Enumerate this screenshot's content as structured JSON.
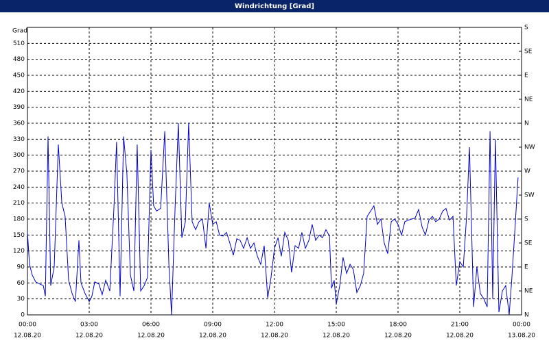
{
  "chart_data": {
    "type": "line",
    "title": "Windrichtung [Grad]",
    "y_label": "Grad",
    "x": [
      0,
      0.1,
      0.23,
      0.4,
      0.6,
      0.77,
      0.87,
      1,
      1.13,
      1.3,
      1.5,
      1.67,
      1.83,
      2,
      2.17,
      2.33,
      2.5,
      2.6,
      2.8,
      3,
      3.13,
      3.27,
      3.47,
      3.63,
      3.8,
      4,
      4.2,
      4.33,
      4.5,
      4.67,
      4.83,
      5,
      5.17,
      5.33,
      5.5,
      5.67,
      5.83,
      6,
      6.13,
      6.27,
      6.47,
      6.67,
      6.87,
      7,
      7.17,
      7.33,
      7.5,
      7.67,
      7.83,
      8,
      8.17,
      8.33,
      8.5,
      8.67,
      8.83,
      9,
      9.17,
      9.33,
      9.5,
      9.67,
      9.83,
      10,
      10.17,
      10.33,
      10.5,
      10.67,
      10.83,
      11,
      11.17,
      11.33,
      11.5,
      11.67,
      11.83,
      12,
      12.17,
      12.33,
      12.5,
      12.67,
      12.83,
      13,
      13.17,
      13.33,
      13.5,
      13.67,
      13.83,
      14,
      14.17,
      14.33,
      14.5,
      14.67,
      14.77,
      14.9,
      15,
      15.17,
      15.33,
      15.5,
      15.67,
      15.83,
      16,
      16.17,
      16.33,
      16.5,
      16.67,
      16.83,
      17,
      17.17,
      17.33,
      17.5,
      17.67,
      17.83,
      18,
      18.17,
      18.33,
      18.5,
      18.67,
      18.83,
      19,
      19.17,
      19.33,
      19.5,
      19.67,
      19.83,
      20,
      20.17,
      20.33,
      20.5,
      20.67,
      20.83,
      21,
      21.17,
      21.33,
      21.47,
      21.67,
      21.83,
      22,
      22.17,
      22.33,
      22.47,
      22.6,
      22.73,
      22.9,
      23.07,
      23.23,
      23.4,
      23.53,
      23.67,
      23.83
    ],
    "values": [
      155,
      95,
      75,
      62,
      58,
      55,
      35,
      335,
      55,
      90,
      320,
      210,
      185,
      65,
      40,
      25,
      140,
      60,
      40,
      25,
      35,
      62,
      58,
      38,
      65,
      45,
      200,
      325,
      35,
      335,
      265,
      75,
      45,
      320,
      45,
      55,
      70,
      310,
      205,
      195,
      200,
      345,
      95,
      0,
      200,
      360,
      145,
      175,
      360,
      175,
      160,
      175,
      180,
      125,
      210,
      170,
      175,
      150,
      148,
      155,
      135,
      112,
      143,
      140,
      125,
      145,
      125,
      135,
      110,
      95,
      130,
      32,
      70,
      125,
      145,
      110,
      155,
      140,
      80,
      130,
      125,
      155,
      125,
      140,
      170,
      140,
      150,
      145,
      160,
      148,
      50,
      65,
      20,
      55,
      108,
      78,
      95,
      85,
      42,
      55,
      78,
      185,
      195,
      205,
      170,
      180,
      135,
      115,
      175,
      180,
      170,
      150,
      175,
      178,
      180,
      182,
      198,
      165,
      150,
      178,
      185,
      175,
      180,
      195,
      200,
      178,
      185,
      55,
      100,
      90,
      185,
      315,
      15,
      90,
      40,
      30,
      15,
      345,
      30,
      330,
      5,
      45,
      55,
      0,
      70,
      155,
      258
    ],
    "color": "#0000cc",
    "xlim": [
      0,
      24
    ],
    "xticks": [
      {
        "value": 0,
        "label": "00:00"
      },
      {
        "value": 3,
        "label": "03:00"
      },
      {
        "value": 6,
        "label": "06:00"
      },
      {
        "value": 9,
        "label": "09:00"
      },
      {
        "value": 12,
        "label": "12:00"
      },
      {
        "value": 15,
        "label": "15:00"
      },
      {
        "value": 18,
        "label": "18:00"
      },
      {
        "value": 21,
        "label": "21:00"
      },
      {
        "value": 24,
        "label": "00:00"
      }
    ],
    "xtick_dates": [
      "12.08.20",
      "12.08.20",
      "12.08.20",
      "12.08.20",
      "12.08.20",
      "12.08.20",
      "12.08.20",
      "12.08.20",
      "13.08.20"
    ],
    "ylim": [
      0,
      540
    ],
    "yticks": [
      0,
      30,
      60,
      90,
      120,
      150,
      180,
      210,
      240,
      270,
      300,
      330,
      360,
      390,
      420,
      450,
      480,
      510
    ],
    "y2lim": [
      0,
      540
    ],
    "y2ticks": [
      {
        "value": 0,
        "label": "N"
      },
      {
        "value": 45,
        "label": "NE"
      },
      {
        "value": 90,
        "label": "E"
      },
      {
        "value": 135,
        "label": "SE"
      },
      {
        "value": 180,
        "label": "S"
      },
      {
        "value": 225,
        "label": "SW"
      },
      {
        "value": 270,
        "label": "W"
      },
      {
        "value": 315,
        "label": "NW"
      },
      {
        "value": 360,
        "label": "N"
      },
      {
        "value": 405,
        "label": "NE"
      },
      {
        "value": 450,
        "label": "E"
      },
      {
        "value": 495,
        "label": "SE"
      },
      {
        "value": 540,
        "label": "S"
      }
    ],
    "grid": true
  }
}
